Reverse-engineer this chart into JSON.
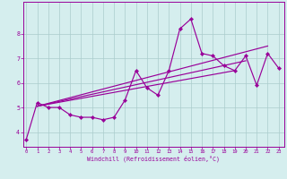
{
  "xlabel": "Windchill (Refroidissement éolien,°C)",
  "x": [
    0,
    1,
    2,
    3,
    4,
    5,
    6,
    7,
    8,
    9,
    10,
    11,
    12,
    13,
    14,
    15,
    16,
    17,
    18,
    19,
    20,
    21,
    22,
    23
  ],
  "y_main": [
    3.7,
    5.2,
    5.0,
    5.0,
    4.7,
    4.6,
    4.6,
    4.5,
    4.6,
    5.3,
    6.5,
    5.8,
    5.5,
    6.5,
    8.2,
    8.6,
    7.2,
    7.1,
    6.7,
    6.5,
    7.1,
    5.9,
    7.2,
    6.6
  ],
  "reg_lines": [
    {
      "x0": 1,
      "x1": 19,
      "y0": 5.05,
      "y1": 6.5
    },
    {
      "x0": 1,
      "x1": 20,
      "y0": 5.05,
      "y1": 6.9
    },
    {
      "x0": 1,
      "x1": 22,
      "y0": 5.05,
      "y1": 7.5
    }
  ],
  "color": "#990099",
  "bg_color": "#d5eeee",
  "grid_color": "#aacccc",
  "ylim": [
    3.4,
    9.3
  ],
  "yticks": [
    4,
    5,
    6,
    7,
    8
  ],
  "xticks": [
    0,
    1,
    2,
    3,
    4,
    5,
    6,
    7,
    8,
    9,
    10,
    11,
    12,
    13,
    14,
    15,
    16,
    17,
    18,
    19,
    20,
    21,
    22,
    23
  ]
}
